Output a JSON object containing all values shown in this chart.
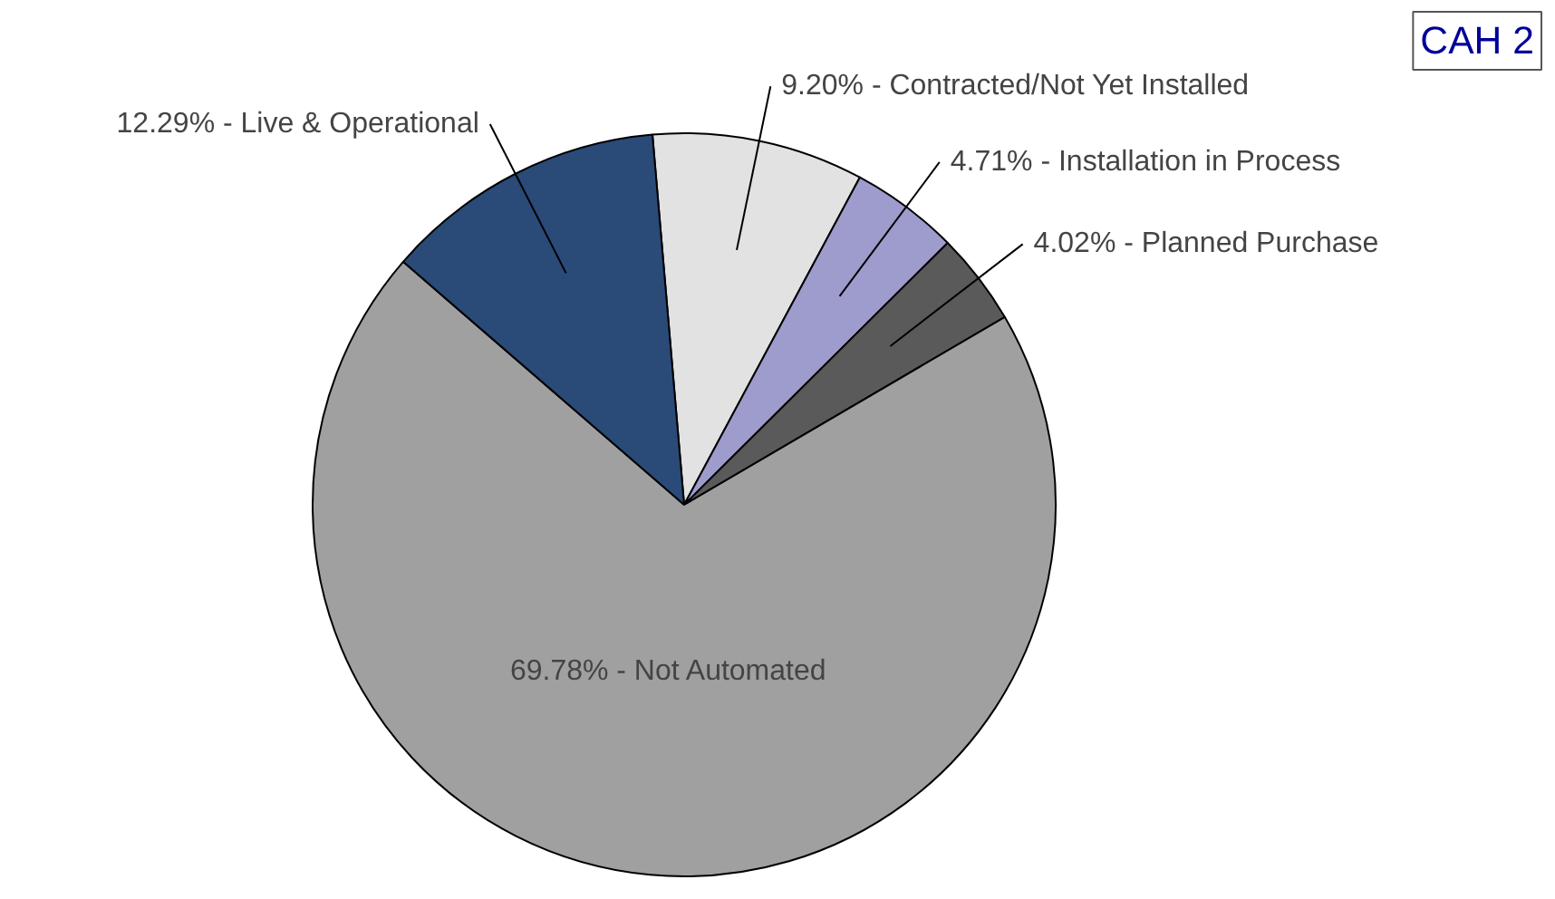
{
  "chart_data": {
    "type": "pie",
    "categories": [
      "Contracted/Not Yet Installed",
      "Installation in Process",
      "Planned Purchase",
      "Not Automated",
      "Live & Operational"
    ],
    "values": [
      9.2,
      4.71,
      4.02,
      69.78,
      12.29
    ],
    "colors": [
      "#e2e2e2",
      "#9d9ccc",
      "#5a5a5a",
      "#a0a0a0",
      "#2a4a78"
    ],
    "value_labels": [
      "9.20%",
      "4.71%",
      "4.02%",
      "69.78%",
      "12.29%"
    ],
    "annotations": [
      "CAH 2"
    ],
    "legend": false
  }
}
